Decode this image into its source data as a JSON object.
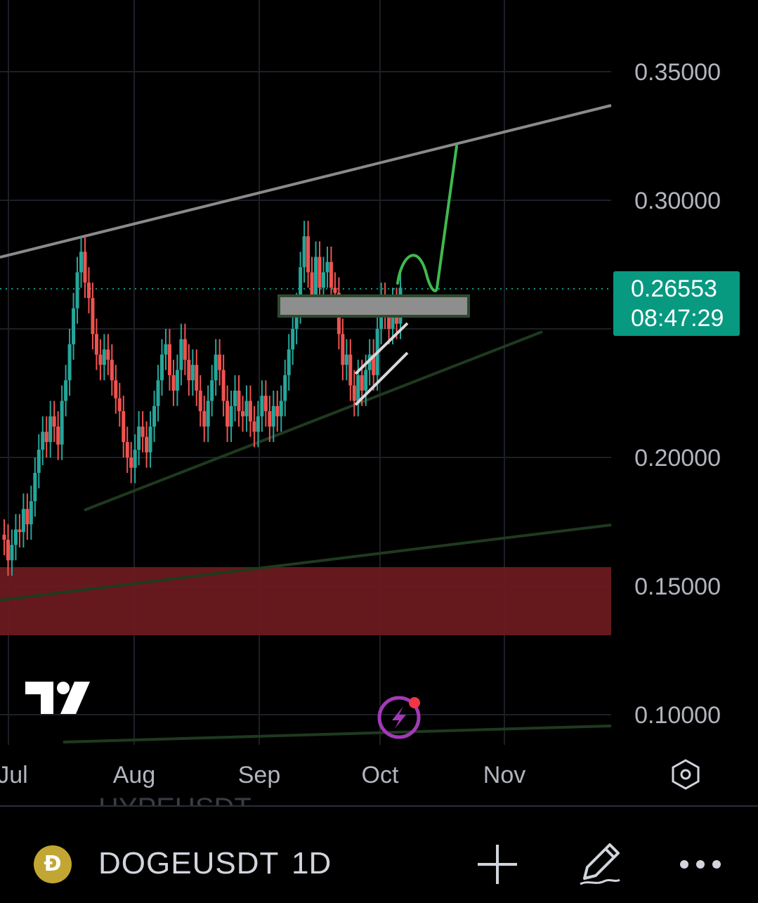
{
  "chart_data": {
    "type": "candlestick",
    "symbol": "DOGEUSDT",
    "interval": "1D",
    "y_ticks": [
      "0.35000",
      "0.30000",
      "0.20000",
      "0.15000",
      "0.10000"
    ],
    "x_ticks": [
      "Jul",
      "Aug",
      "Sep",
      "Oct",
      "Nov"
    ],
    "ylim": [
      0.09,
      0.375
    ],
    "current_price": "0.26553",
    "countdown": "08:47:29",
    "candles": [
      [
        0.17,
        0.168
      ],
      [
        0.168,
        0.16
      ],
      [
        0.16,
        0.166
      ],
      [
        0.166,
        0.172
      ],
      [
        0.172,
        0.171
      ],
      [
        0.171,
        0.18
      ],
      [
        0.18,
        0.174
      ],
      [
        0.174,
        0.183
      ],
      [
        0.183,
        0.194
      ],
      [
        0.194,
        0.203
      ],
      [
        0.203,
        0.21
      ],
      [
        0.21,
        0.206
      ],
      [
        0.206,
        0.216
      ],
      [
        0.216,
        0.212
      ],
      [
        0.212,
        0.205
      ],
      [
        0.205,
        0.222
      ],
      [
        0.222,
        0.23
      ],
      [
        0.23,
        0.244
      ],
      [
        0.244,
        0.258
      ],
      [
        0.258,
        0.272
      ],
      [
        0.272,
        0.28
      ],
      [
        0.28,
        0.268
      ],
      [
        0.268,
        0.262
      ],
      [
        0.262,
        0.248
      ],
      [
        0.248,
        0.24
      ],
      [
        0.24,
        0.236
      ],
      [
        0.236,
        0.242
      ],
      [
        0.242,
        0.238
      ],
      [
        0.238,
        0.23
      ],
      [
        0.23,
        0.223
      ],
      [
        0.223,
        0.218
      ],
      [
        0.218,
        0.206
      ],
      [
        0.206,
        0.2
      ],
      [
        0.2,
        0.196
      ],
      [
        0.196,
        0.203
      ],
      [
        0.203,
        0.212
      ],
      [
        0.212,
        0.208
      ],
      [
        0.208,
        0.202
      ],
      [
        0.202,
        0.212
      ],
      [
        0.212,
        0.22
      ],
      [
        0.22,
        0.23
      ],
      [
        0.23,
        0.24
      ],
      [
        0.24,
        0.244
      ],
      [
        0.244,
        0.232
      ],
      [
        0.232,
        0.226
      ],
      [
        0.226,
        0.234
      ],
      [
        0.234,
        0.246
      ],
      [
        0.246,
        0.238
      ],
      [
        0.238,
        0.23
      ],
      [
        0.23,
        0.236
      ],
      [
        0.236,
        0.226
      ],
      [
        0.226,
        0.218
      ],
      [
        0.218,
        0.212
      ],
      [
        0.212,
        0.222
      ],
      [
        0.222,
        0.23
      ],
      [
        0.23,
        0.24
      ],
      [
        0.24,
        0.234
      ],
      [
        0.234,
        0.222
      ],
      [
        0.222,
        0.212
      ],
      [
        0.212,
        0.22
      ],
      [
        0.22,
        0.226
      ],
      [
        0.226,
        0.218
      ],
      [
        0.218,
        0.216
      ],
      [
        0.216,
        0.222
      ],
      [
        0.222,
        0.214
      ],
      [
        0.214,
        0.21
      ],
      [
        0.21,
        0.216
      ],
      [
        0.216,
        0.224
      ],
      [
        0.224,
        0.218
      ],
      [
        0.218,
        0.212
      ],
      [
        0.212,
        0.22
      ],
      [
        0.22,
        0.216
      ],
      [
        0.216,
        0.222
      ],
      [
        0.222,
        0.232
      ],
      [
        0.232,
        0.242
      ],
      [
        0.242,
        0.25
      ],
      [
        0.25,
        0.258
      ],
      [
        0.258,
        0.274
      ],
      [
        0.274,
        0.286
      ],
      [
        0.286,
        0.272
      ],
      [
        0.272,
        0.262
      ],
      [
        0.262,
        0.278
      ],
      [
        0.278,
        0.266
      ],
      [
        0.266,
        0.272
      ],
      [
        0.272,
        0.276
      ],
      [
        0.276,
        0.266
      ],
      [
        0.266,
        0.264
      ],
      [
        0.264,
        0.248
      ],
      [
        0.248,
        0.236
      ],
      [
        0.236,
        0.24
      ],
      [
        0.24,
        0.228
      ],
      [
        0.228,
        0.222
      ],
      [
        0.222,
        0.232
      ],
      [
        0.232,
        0.226
      ],
      [
        0.226,
        0.234
      ],
      [
        0.234,
        0.24
      ],
      [
        0.24,
        0.232
      ],
      [
        0.232,
        0.25
      ],
      [
        0.25,
        0.262
      ],
      [
        0.262,
        0.256
      ],
      [
        0.256,
        0.25
      ],
      [
        0.25,
        0.26
      ],
      [
        0.26,
        0.252
      ],
      [
        0.252,
        0.266
      ]
    ]
  },
  "chart_colors": {
    "up": "#26a69a",
    "down": "#ef5350",
    "resistance_line": "#8a8a8a",
    "support_line": "#1f3a1f",
    "red_zone": "#6b1a1f",
    "target_path": "#3fb950",
    "price_tag": "#089981"
  },
  "toolbar": {
    "ghost_text": "HYPEUSDT.",
    "symbol": "DOGEUSDT",
    "interval": "1D"
  },
  "icons": {
    "logo": "tradingview-logo",
    "flash": "lightning-icon",
    "settings": "hexagon-settings-icon",
    "add": "plus-icon",
    "draw": "pencil-icon",
    "more": "more-dots-icon"
  }
}
